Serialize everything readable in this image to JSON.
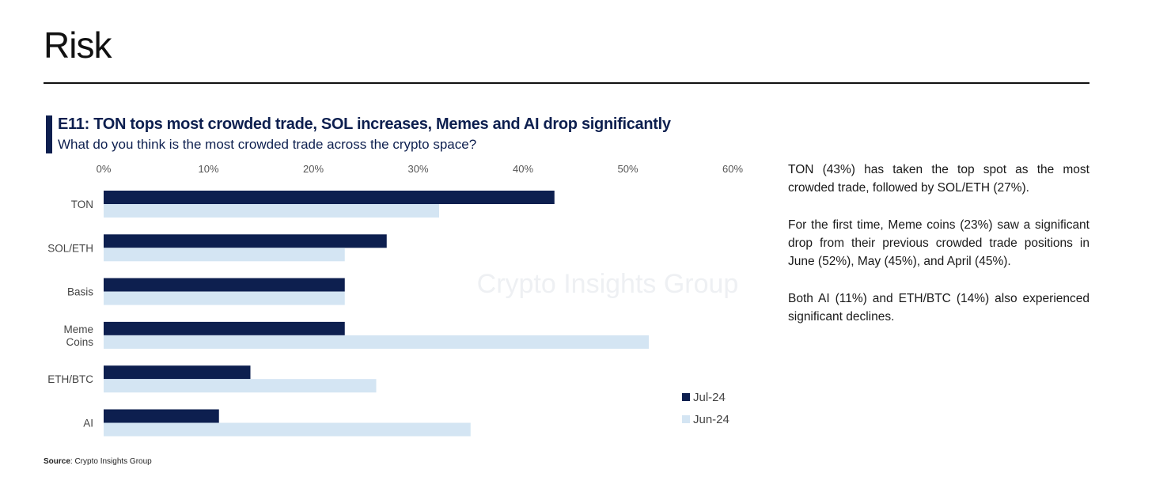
{
  "page": {
    "title": "Risk",
    "source_label": "Source",
    "source_text": ": Crypto Insights Group",
    "watermark": "Crypto Insights Group"
  },
  "commentary": [
    "TON (43%) has taken the top spot as the most crowded trade, followed by SOL/ETH (27%).",
    "For the first time, Meme coins (23%) saw a significant drop from their previous crowded trade positions in June (52%), May (45%), and April (45%).",
    "Both AI (11%) and ETH/BTC (14%) also experienced significant declines."
  ],
  "colors": {
    "jul": "#0d1f4f",
    "jun": "#d4e5f3",
    "accent": "#0d1f4f"
  },
  "chart_data": {
    "type": "bar",
    "orientation": "horizontal",
    "title": "E11: TON tops most crowded trade, SOL increases, Memes and AI drop significantly",
    "subtitle": "What do you think is the most crowded trade across the crypto space?",
    "categories": [
      "TON",
      "SOL/ETH",
      "Basis",
      "Meme Coins",
      "ETH/BTC",
      "AI"
    ],
    "series": [
      {
        "name": "Jul-24",
        "color": "#0d1f4f",
        "values": [
          43,
          27,
          23,
          23,
          14,
          11
        ]
      },
      {
        "name": "Jun-24",
        "color": "#d4e5f3",
        "values": [
          32,
          23,
          23,
          52,
          26,
          35
        ]
      }
    ],
    "xlim": [
      0,
      60
    ],
    "xticks": [
      "0%",
      "10%",
      "20%",
      "30%",
      "40%",
      "50%",
      "60%"
    ],
    "xtick_values": [
      0,
      10,
      20,
      30,
      40,
      50,
      60
    ],
    "axis_position": "top",
    "grid": false,
    "legend": "bottom-right"
  }
}
